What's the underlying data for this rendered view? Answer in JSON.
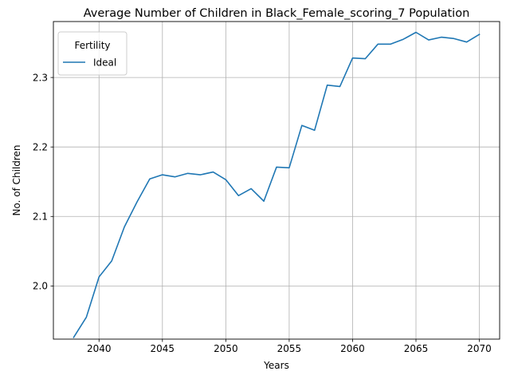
{
  "chart_data": {
    "type": "line",
    "title": "Average Number of Children in Black_Female_scoring_7 Population",
    "xlabel": "Years",
    "ylabel": "No. of Children",
    "xlim": [
      2036.4,
      2071.6
    ],
    "ylim": [
      1.9235,
      2.3805
    ],
    "xticks": [
      2040,
      2045,
      2050,
      2055,
      2060,
      2065,
      2070
    ],
    "yticks": [
      2.0,
      2.1,
      2.2,
      2.3
    ],
    "xtick_labels": [
      "2040",
      "2045",
      "2050",
      "2055",
      "2060",
      "2065",
      "2070"
    ],
    "ytick_labels": [
      "2.0",
      "2.1",
      "2.2",
      "2.3"
    ],
    "grid": true,
    "legend": {
      "title": "Fertility",
      "placement": "top-left"
    },
    "series": [
      {
        "name": "Ideal",
        "color": "#1f77b4",
        "x": [
          2038,
          2039,
          2040,
          2041,
          2042,
          2043,
          2044,
          2045,
          2046,
          2047,
          2048,
          2049,
          2050,
          2051,
          2052,
          2053,
          2054,
          2055,
          2056,
          2057,
          2058,
          2059,
          2060,
          2061,
          2062,
          2063,
          2064,
          2065,
          2066,
          2067,
          2068,
          2069,
          2070
        ],
        "y": [
          1.926,
          1.955,
          2.013,
          2.036,
          2.085,
          2.121,
          2.154,
          2.16,
          2.157,
          2.162,
          2.16,
          2.164,
          2.153,
          2.13,
          2.14,
          2.122,
          2.171,
          2.17,
          2.231,
          2.224,
          2.289,
          2.287,
          2.328,
          2.327,
          2.348,
          2.348,
          2.355,
          2.365,
          2.354,
          2.358,
          2.356,
          2.351,
          2.362
        ]
      }
    ]
  }
}
